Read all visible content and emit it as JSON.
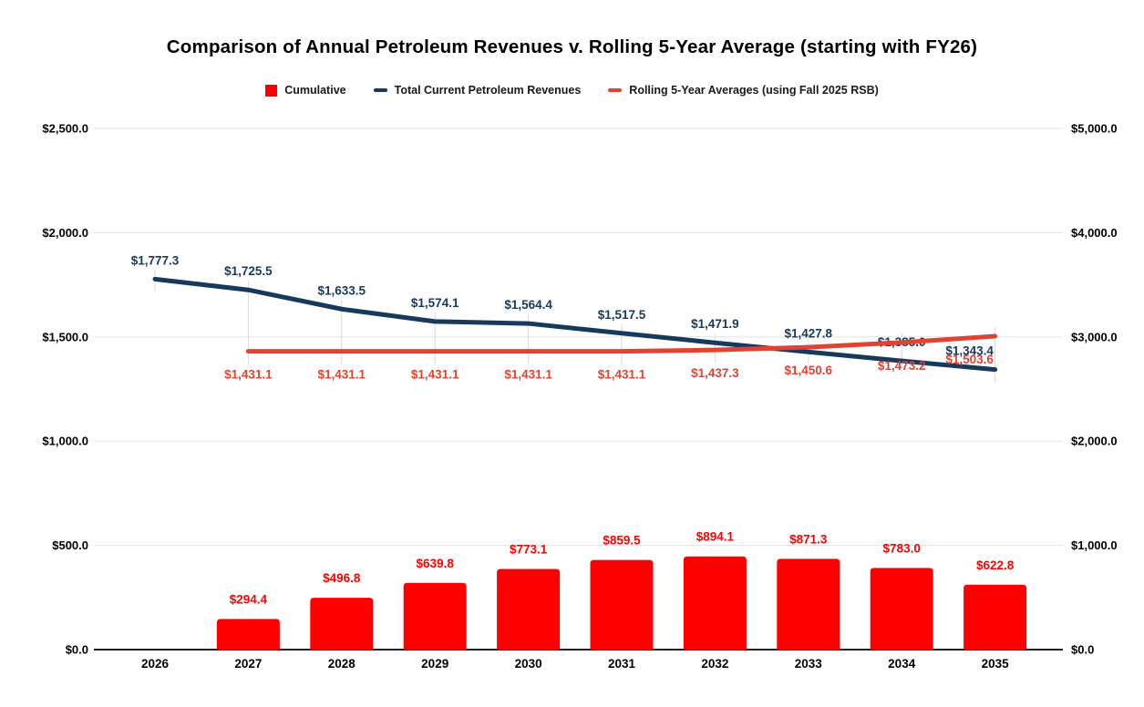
{
  "title": "Comparison of Annual Petroleum Revenues v. Rolling 5-Year Average (starting with FY26)",
  "legend": [
    {
      "label": "Cumulative",
      "swatch": "square",
      "color": "#ff0000"
    },
    {
      "label": "Total Current Petroleum Revenues",
      "swatch": "line",
      "color": "#17395e"
    },
    {
      "label": "Rolling 5-Year Averages (using Fall 2025 RSB)",
      "swatch": "line",
      "color": "#e24330"
    }
  ],
  "chart_data": {
    "type": "combo",
    "title": "Comparison of Annual Petroleum Revenues v. Rolling 5-Year Average (starting with FY26)",
    "categories": [
      "2026",
      "2027",
      "2028",
      "2029",
      "2030",
      "2031",
      "2032",
      "2033",
      "2034",
      "2035"
    ],
    "series": [
      {
        "name": "Cumulative",
        "type": "bar",
        "axis": "right",
        "color": "#ff0000",
        "values": [
          null,
          294.4,
          496.8,
          639.8,
          773.1,
          859.5,
          894.1,
          871.3,
          783.0,
          622.8
        ],
        "labels": [
          null,
          "$294.4",
          "$496.8",
          "$639.8",
          "$773.1",
          "$859.5",
          "$894.1",
          "$871.3",
          "$783.0",
          "$622.8"
        ]
      },
      {
        "name": "Total Current Petroleum Revenues",
        "type": "line",
        "axis": "left",
        "color": "#17395e",
        "values": [
          1777.3,
          1725.5,
          1633.5,
          1574.1,
          1564.4,
          1517.5,
          1471.9,
          1427.8,
          1385.0,
          1343.4
        ],
        "labels": [
          "$1,777.3",
          "$1,725.5",
          "$1,633.5",
          "$1,574.1",
          "$1,564.4",
          "$1,517.5",
          "$1,471.9",
          "$1,427.8",
          "$1,385.0",
          "$1,343.4"
        ]
      },
      {
        "name": "Rolling 5-Year Averages (using Fall 2025 RSB)",
        "type": "line",
        "axis": "left",
        "color": "#e24330",
        "values": [
          null,
          1431.1,
          1431.1,
          1431.1,
          1431.1,
          1431.1,
          1437.3,
          1450.6,
          1473.2,
          1503.6
        ],
        "labels": [
          null,
          "$1,431.1",
          "$1,431.1",
          "$1,431.1",
          "$1,431.1",
          "$1,431.1",
          "$1,437.3",
          "$1,450.6",
          "$1,473.2",
          "$1,503.6"
        ]
      }
    ],
    "left_axis": {
      "min": 0,
      "max": 2500,
      "tick_step": 500,
      "ticks": [
        "$0.0",
        "$500.0",
        "$1,000.0",
        "$1,500.0",
        "$2,000.0",
        "$2,500.0"
      ]
    },
    "right_axis": {
      "min": 0,
      "max": 5000,
      "tick_step": 1000,
      "ticks": [
        "$0.0",
        "$1,000.0",
        "$2,000.0",
        "$3,000.0",
        "$4,000.0",
        "$5,000.0"
      ]
    },
    "grid": "horizontal",
    "legend_position": "top"
  },
  "colors": {
    "background": "#ffffff",
    "gridline": "#e3e3e3",
    "axis_line": "#212121",
    "stem": "#dadada",
    "tick_label": "#000000",
    "x_label": "#000000"
  }
}
